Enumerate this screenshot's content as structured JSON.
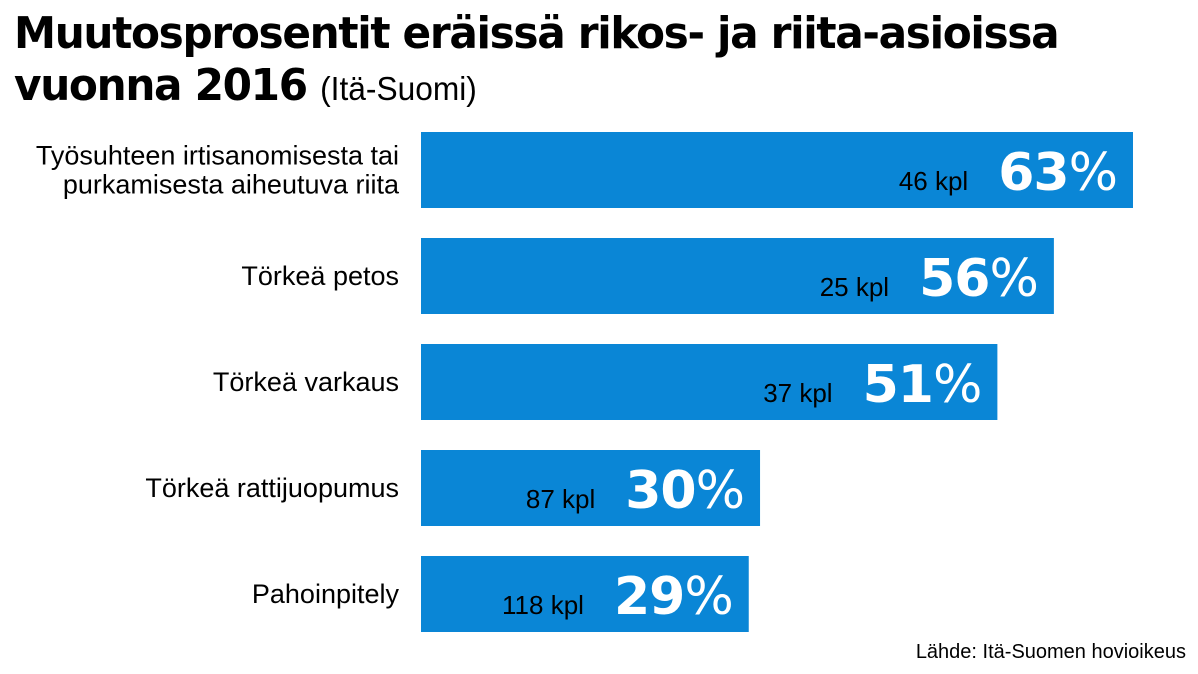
{
  "title": {
    "main_line1": "Muutosprosentit eräissä rikos- ja riita-asioissa",
    "main_line2": "vuonna 2016",
    "subtitle": "(Itä-Suomi)"
  },
  "source": "Lähde: Itä-Suomen hovioikeus",
  "colors": {
    "bar": "#0a86d6",
    "value_text": "#ffffff"
  },
  "chart_data": {
    "type": "bar",
    "orientation": "horizontal",
    "categories": [
      [
        "Työsuhteen irtisanomisesta tai",
        "purkamisesta aiheutuva riita"
      ],
      [
        "Törkeä petos"
      ],
      [
        "Törkeä varkaus"
      ],
      [
        "Törkeä rattijuopumus"
      ],
      [
        "Pahoinpitely"
      ]
    ],
    "values": [
      63,
      56,
      51,
      30,
      29
    ],
    "value_labels": [
      "63%",
      "56%",
      "51%",
      "30%",
      "29%"
    ],
    "counts": [
      "46 kpl",
      "25 kpl",
      "37 kpl",
      "87 kpl",
      "118 kpl"
    ],
    "unit": "%",
    "xlim": [
      0,
      63
    ],
    "grid": false,
    "legend": "none"
  }
}
